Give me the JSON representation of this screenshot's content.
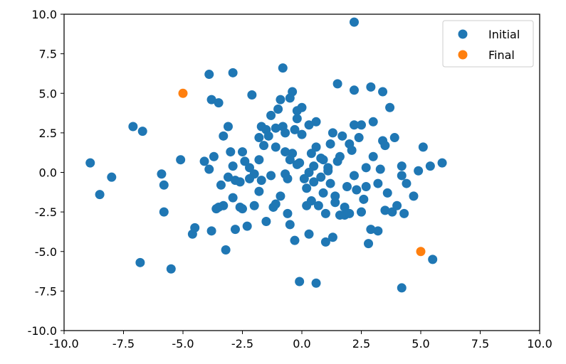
{
  "chart_data": {
    "type": "scatter",
    "title": "",
    "xlabel": "",
    "ylabel": "",
    "xlim": [
      -10,
      10
    ],
    "ylim": [
      -10,
      10
    ],
    "grid": false,
    "legend_position": "top-right",
    "xticks": [
      "-10.0",
      "-7.5",
      "-5.0",
      "-2.5",
      "0.0",
      "2.5",
      "5.0",
      "7.5",
      "10.0"
    ],
    "yticks": [
      "10.0",
      "7.5",
      "5.0",
      "2.5",
      "0.0",
      "-2.5",
      "-5.0",
      "-7.5",
      "-10.0"
    ],
    "series": [
      {
        "name": "Initial",
        "color": "#1f77b4",
        "points": [
          [
            -8.9,
            0.6
          ],
          [
            -8.5,
            -1.4
          ],
          [
            -8.0,
            -0.3
          ],
          [
            -7.1,
            2.9
          ],
          [
            -6.7,
            2.6
          ],
          [
            -6.8,
            -5.7
          ],
          [
            -5.9,
            -0.1
          ],
          [
            -5.8,
            -0.8
          ],
          [
            -5.8,
            -2.5
          ],
          [
            -5.5,
            -6.1
          ],
          [
            -5.1,
            0.8
          ],
          [
            -4.6,
            -3.9
          ],
          [
            -4.5,
            -3.5
          ],
          [
            -4.1,
            0.7
          ],
          [
            -3.9,
            6.2
          ],
          [
            -3.9,
            0.2
          ],
          [
            -3.8,
            4.6
          ],
          [
            -3.8,
            -3.7
          ],
          [
            -3.7,
            1.0
          ],
          [
            -3.6,
            -2.3
          ],
          [
            -3.5,
            4.4
          ],
          [
            -3.4,
            -0.8
          ],
          [
            -3.3,
            2.3
          ],
          [
            -3.3,
            -2.1
          ],
          [
            -3.2,
            -4.9
          ],
          [
            -3.1,
            2.9
          ],
          [
            -3.1,
            -0.3
          ],
          [
            -3.0,
            1.3
          ],
          [
            -2.9,
            6.3
          ],
          [
            -2.9,
            -1.6
          ],
          [
            -2.9,
            0.4
          ],
          [
            -2.8,
            -0.5
          ],
          [
            -2.8,
            -3.6
          ],
          [
            -2.6,
            -2.2
          ],
          [
            -2.5,
            1.3
          ],
          [
            -2.5,
            -2.3
          ],
          [
            -2.4,
            0.7
          ],
          [
            -2.3,
            -3.4
          ],
          [
            -2.2,
            0.3
          ],
          [
            -2.1,
            4.9
          ],
          [
            -2.0,
            -0.1
          ],
          [
            -1.8,
            2.2
          ],
          [
            -1.8,
            -1.2
          ],
          [
            -1.7,
            2.9
          ],
          [
            -1.7,
            -0.5
          ],
          [
            -1.6,
            1.7
          ],
          [
            -1.5,
            2.7
          ],
          [
            -1.4,
            2.3
          ],
          [
            -1.3,
            3.6
          ],
          [
            -1.2,
            -2.2
          ],
          [
            -1.1,
            2.8
          ],
          [
            -1.0,
            4.0
          ],
          [
            -0.9,
            4.6
          ],
          [
            -0.8,
            6.6
          ],
          [
            -0.8,
            2.9
          ],
          [
            -0.7,
            1.3
          ],
          [
            -0.7,
            -0.1
          ],
          [
            -0.6,
            -2.6
          ],
          [
            -0.5,
            -3.3
          ],
          [
            -0.5,
            4.7
          ],
          [
            -0.4,
            1.2
          ],
          [
            -0.4,
            5.1
          ],
          [
            -0.3,
            -4.3
          ],
          [
            -0.3,
            2.7
          ],
          [
            -0.2,
            3.4
          ],
          [
            -0.2,
            3.9
          ],
          [
            -0.2,
            0.5
          ],
          [
            -0.1,
            -6.9
          ],
          [
            -0.1,
            0.6
          ],
          [
            0.0,
            2.4
          ],
          [
            0.0,
            4.1
          ],
          [
            0.1,
            -0.4
          ],
          [
            0.2,
            -2.1
          ],
          [
            0.3,
            -3.9
          ],
          [
            0.3,
            3.0
          ],
          [
            0.4,
            1.2
          ],
          [
            0.5,
            -0.6
          ],
          [
            0.5,
            0.4
          ],
          [
            0.6,
            -7.0
          ],
          [
            0.6,
            1.6
          ],
          [
            0.6,
            3.2
          ],
          [
            0.7,
            -2.1
          ],
          [
            0.8,
            0.9
          ],
          [
            0.9,
            -1.3
          ],
          [
            1.0,
            -2.6
          ],
          [
            1.0,
            -4.4
          ],
          [
            1.1,
            0.1
          ],
          [
            1.2,
            -0.7
          ],
          [
            1.2,
            1.8
          ],
          [
            1.3,
            2.5
          ],
          [
            1.3,
            -4.1
          ],
          [
            1.4,
            -1.9
          ],
          [
            1.5,
            5.6
          ],
          [
            1.5,
            0.7
          ],
          [
            1.6,
            -2.7
          ],
          [
            1.7,
            2.3
          ],
          [
            1.8,
            -2.7
          ],
          [
            1.8,
            -2.2
          ],
          [
            1.9,
            -0.9
          ],
          [
            2.0,
            1.8
          ],
          [
            2.1,
            1.4
          ],
          [
            2.2,
            9.5
          ],
          [
            2.2,
            5.2
          ],
          [
            2.2,
            3.0
          ],
          [
            2.2,
            -0.2
          ],
          [
            2.3,
            -1.1
          ],
          [
            2.4,
            2.2
          ],
          [
            2.5,
            -2.5
          ],
          [
            2.5,
            3.0
          ],
          [
            2.6,
            -1.7
          ],
          [
            2.7,
            0.3
          ],
          [
            2.7,
            -0.9
          ],
          [
            2.8,
            -4.5
          ],
          [
            2.9,
            5.4
          ],
          [
            2.9,
            -3.6
          ],
          [
            3.0,
            1.0
          ],
          [
            3.0,
            3.2
          ],
          [
            3.2,
            -0.7
          ],
          [
            3.2,
            -3.7
          ],
          [
            3.3,
            0.2
          ],
          [
            3.4,
            5.1
          ],
          [
            3.4,
            2.0
          ],
          [
            3.5,
            -2.4
          ],
          [
            3.5,
            1.7
          ],
          [
            3.6,
            -1.3
          ],
          [
            3.7,
            4.1
          ],
          [
            3.8,
            -2.5
          ],
          [
            3.9,
            2.2
          ],
          [
            4.0,
            -2.1
          ],
          [
            4.2,
            -7.3
          ],
          [
            4.2,
            0.4
          ],
          [
            4.2,
            -0.2
          ],
          [
            4.3,
            -2.6
          ],
          [
            4.4,
            -0.7
          ],
          [
            4.7,
            -1.5
          ],
          [
            4.9,
            0.1
          ],
          [
            5.1,
            1.6
          ],
          [
            5.4,
            0.4
          ],
          [
            5.5,
            -5.5
          ],
          [
            5.9,
            0.6
          ],
          [
            -1.1,
            -2.0
          ],
          [
            -0.6,
            -0.4
          ],
          [
            -1.3,
            -0.2
          ],
          [
            -2.0,
            -2.1
          ],
          [
            -0.9,
            -1.5
          ],
          [
            0.2,
            -1.0
          ],
          [
            1.6,
            1.0
          ],
          [
            -2.6,
            -0.6
          ],
          [
            -1.5,
            -3.1
          ],
          [
            0.8,
            -0.3
          ],
          [
            1.4,
            -1.5
          ],
          [
            -0.5,
            0.8
          ],
          [
            2.0,
            -2.6
          ],
          [
            -3.5,
            -2.2
          ],
          [
            0.3,
            0.0
          ],
          [
            -2.2,
            -0.4
          ],
          [
            -1.1,
            1.6
          ],
          [
            1.1,
            0.3
          ],
          [
            -0.7,
            2.5
          ],
          [
            0.9,
            0.8
          ],
          [
            -1.8,
            0.8
          ],
          [
            0.4,
            -1.8
          ]
        ]
      },
      {
        "name": "Final",
        "color": "#ff7f0e",
        "points": [
          [
            -5.0,
            5.0
          ],
          [
            5.0,
            -5.0
          ]
        ]
      }
    ]
  }
}
